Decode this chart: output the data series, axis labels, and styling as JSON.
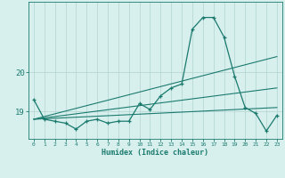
{
  "xlabel": "Humidex (Indice chaleur)",
  "ylabel": "",
  "bg_color": "#d8f0ed",
  "grid_color": "#b8d8d4",
  "line_color": "#1a7a6e",
  "x_values": [
    0,
    1,
    2,
    3,
    4,
    5,
    6,
    7,
    8,
    9,
    10,
    11,
    12,
    13,
    14,
    15,
    16,
    17,
    18,
    19,
    20,
    21,
    22,
    23
  ],
  "main_line": [
    19.3,
    18.8,
    18.75,
    18.7,
    18.55,
    18.75,
    18.8,
    18.7,
    18.75,
    18.75,
    19.2,
    19.05,
    19.4,
    19.6,
    19.7,
    21.1,
    21.4,
    21.4,
    20.9,
    19.9,
    19.1,
    18.95,
    18.5,
    18.9
  ],
  "reg_line1_start": 18.8,
  "reg_line1_end": 20.4,
  "reg_line2_start": 18.8,
  "reg_line2_end": 19.6,
  "reg_line3_start": 18.8,
  "reg_line3_end": 19.1,
  "ylim": [
    18.3,
    21.8
  ],
  "yticks": [
    19,
    20
  ],
  "xlim": [
    -0.5,
    23.5
  ]
}
